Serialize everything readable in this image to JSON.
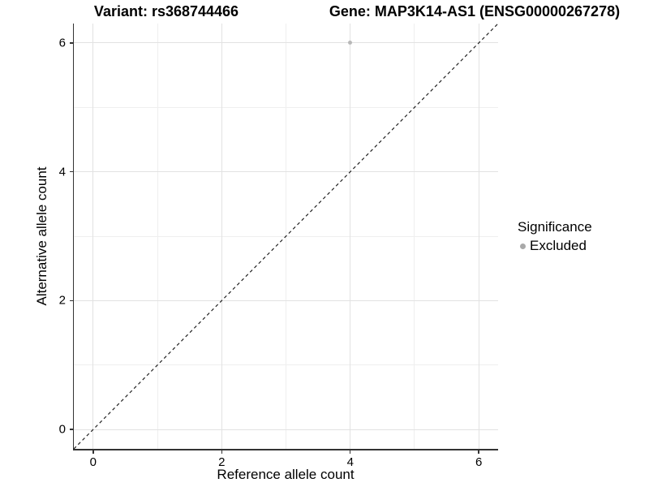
{
  "chart_data": {
    "type": "scatter",
    "title_left": "Variant: rs368744466",
    "title_right": "Gene: MAP3K14-AS1 (ENSG00000267278)",
    "xlabel": "Reference allele count",
    "ylabel": "Alternative allele count",
    "xlim": [
      -0.3,
      6.3
    ],
    "ylim": [
      -0.3,
      6.3
    ],
    "x_major_ticks": [
      0,
      2,
      4,
      6
    ],
    "x_minor_ticks": [
      1,
      3,
      5
    ],
    "y_major_ticks": [
      0,
      2,
      4,
      6
    ],
    "y_minor_ticks": [
      1,
      3,
      5
    ],
    "grid": "major+minor",
    "series": [
      {
        "name": "Excluded",
        "color": "#b8b8b8",
        "points": [
          {
            "x": 4,
            "y": 6
          }
        ]
      }
    ],
    "reference_line": {
      "kind": "identity y=x",
      "style": "dashed",
      "color": "#222222"
    },
    "legend": {
      "title": "Significance",
      "position": "right",
      "items": [
        {
          "label": "Excluded",
          "color": "#a9a9a9"
        }
      ]
    },
    "colors": {
      "grid_major": "#e2e2e2",
      "grid_minor": "#efefef",
      "axis_line": "#333333",
      "background": "#ffffff"
    }
  }
}
